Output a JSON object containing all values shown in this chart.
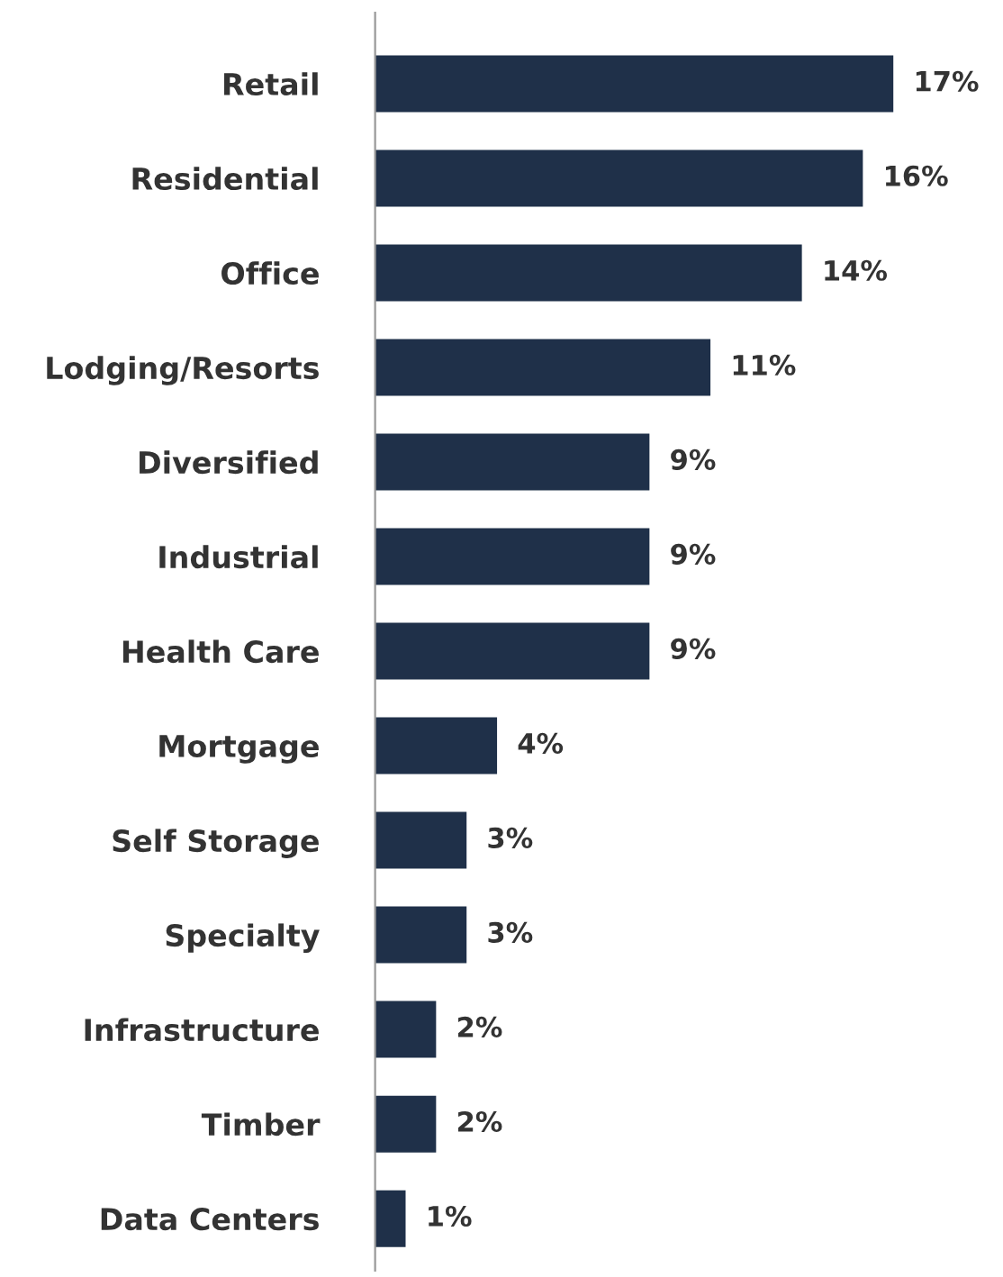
{
  "chart_data": {
    "type": "bar",
    "orientation": "horizontal",
    "categories": [
      "Retail",
      "Residential",
      "Office",
      "Lodging/Resorts",
      "Diversified",
      "Industrial",
      "Health Care",
      "Mortgage",
      "Self Storage",
      "Specialty",
      "Infrastructure",
      "Timber",
      "Data Centers"
    ],
    "values": [
      17,
      16,
      14,
      11,
      9,
      9,
      9,
      4,
      3,
      3,
      2,
      2,
      1
    ],
    "value_labels": [
      "17%",
      "16%",
      "14%",
      "11%",
      "9%",
      "9%",
      "9%",
      "4%",
      "3%",
      "3%",
      "2%",
      "2%",
      "1%"
    ],
    "color": "#1f3049",
    "grid": false,
    "legend": false
  }
}
